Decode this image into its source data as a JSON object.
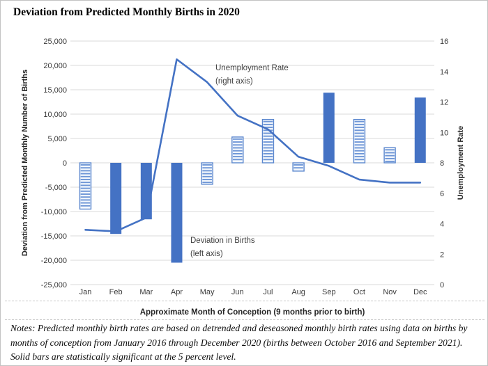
{
  "page": {
    "title": "Deviation from Predicted Monthly Births in 2020",
    "notes": "Notes: Predicted monthly birth rates are based on detrended and deseasoned monthly birth rates using data on births by months of conception from January 2016 through December 2020 (births between October 2016 and September 2021). Solid bars are statistically significant at the 5 percent level."
  },
  "chart_data": {
    "type": "bar",
    "title": "Deviation from Predicted Monthly Births in 2020",
    "categories": [
      "Jan",
      "Feb",
      "Mar",
      "Apr",
      "May",
      "Jun",
      "Jul",
      "Aug",
      "Sep",
      "Oct",
      "Nov",
      "Dec"
    ],
    "series": [
      {
        "name": "Deviation in Births",
        "type": "bar",
        "axis": "left",
        "values": [
          -9500,
          -14600,
          -11600,
          -20500,
          -4400,
          5300,
          8900,
          -1700,
          14400,
          8900,
          3100,
          13400
        ],
        "significant_solid": [
          false,
          true,
          true,
          true,
          false,
          false,
          false,
          false,
          true,
          false,
          false,
          true
        ]
      },
      {
        "name": "Unemployment Rate",
        "type": "line",
        "axis": "right",
        "values": [
          3.6,
          3.5,
          4.4,
          14.8,
          13.3,
          11.1,
          10.2,
          8.4,
          7.8,
          6.9,
          6.7,
          6.7
        ]
      }
    ],
    "left_axis": {
      "label": "Deviation from Predicted Monthly Number of Births",
      "min": -25000,
      "max": 25000,
      "step": 5000,
      "ticks": [
        "25,000",
        "20,000",
        "15,000",
        "10,000",
        "5,000",
        "0",
        "-5,000",
        "-10,000",
        "-15,000",
        "-20,000",
        "-25,000"
      ]
    },
    "right_axis": {
      "label": "Unemployment Rate",
      "min": 0,
      "max": 16,
      "step": 2,
      "ticks": [
        "16",
        "14",
        "12",
        "10",
        "8",
        "6",
        "4",
        "2",
        "0"
      ]
    },
    "x_axis": {
      "label": "Approximate Month of Conception (9 months prior to birth)"
    },
    "annotations": [
      {
        "lines": [
          "Unemployment Rate",
          "(right axis)"
        ],
        "x": 308,
        "y": 100
      },
      {
        "lines": [
          "Deviation in Births",
          "(left axis)"
        ],
        "x": 272,
        "y": 348
      }
    ],
    "grid": true,
    "legend_position": "none",
    "colors": {
      "solid_bar": "#4472C4",
      "line": "#4472C4",
      "hatch_border": "#5b87ce",
      "hatch_stripe": "#6e96d6",
      "hatch_fill": "#f4f8fd",
      "gridline": "#d9d9d9",
      "tick_text": "#3a3a3a"
    }
  }
}
